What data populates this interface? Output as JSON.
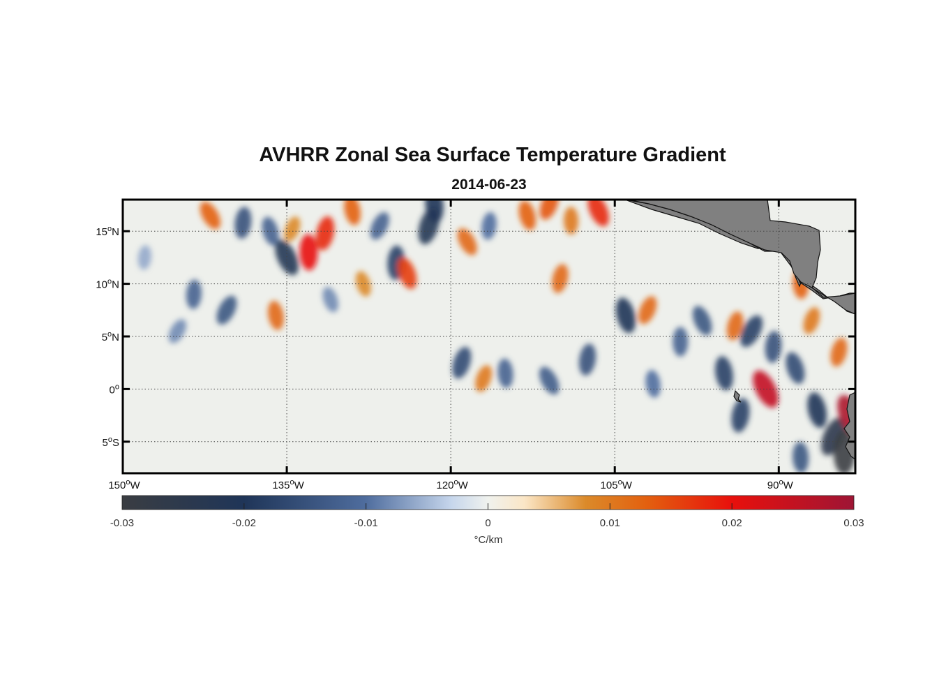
{
  "title": "AVHRR Zonal Sea Surface Temperature Gradient",
  "subtitle": "2014-06-23",
  "map": {
    "lon_range": [
      -150,
      -83
    ],
    "lat_range": [
      -8,
      18
    ],
    "lon_ticks": [
      {
        "value": -150,
        "num": "150",
        "deg": "o",
        "hemi": "W"
      },
      {
        "value": -135,
        "num": "135",
        "deg": "o",
        "hemi": "W"
      },
      {
        "value": -120,
        "num": "120",
        "deg": "o",
        "hemi": "W"
      },
      {
        "value": -105,
        "num": "105",
        "deg": "o",
        "hemi": "W"
      },
      {
        "value": -90,
        "num": "90",
        "deg": "o",
        "hemi": "W"
      }
    ],
    "lat_ticks": [
      {
        "value": 15,
        "num": "15",
        "deg": "o",
        "hemi": "N"
      },
      {
        "value": 10,
        "num": "10",
        "deg": "o",
        "hemi": "N"
      },
      {
        "value": 5,
        "num": "5",
        "deg": "o",
        "hemi": "N"
      },
      {
        "value": 0,
        "num": "0",
        "deg": "o",
        "hemi": ""
      },
      {
        "value": -5,
        "num": "5",
        "deg": "o",
        "hemi": "S"
      }
    ],
    "land_color": "#808080",
    "field_features": [
      {
        "lon": -142,
        "lat": 16.5,
        "v": 0.013
      },
      {
        "lon": -139,
        "lat": 15.8,
        "v": -0.015
      },
      {
        "lon": -136.5,
        "lat": 15.0,
        "v": -0.012
      },
      {
        "lon": -134.5,
        "lat": 15.2,
        "v": 0.008
      },
      {
        "lon": -133,
        "lat": 13.0,
        "v": 0.02
      },
      {
        "lon": -135,
        "lat": 12.5,
        "v": -0.022
      },
      {
        "lon": -131.5,
        "lat": 14.8,
        "v": 0.018
      },
      {
        "lon": -129,
        "lat": 17.0,
        "v": 0.013
      },
      {
        "lon": -126.5,
        "lat": 15.5,
        "v": -0.012
      },
      {
        "lon": -125,
        "lat": 12.0,
        "v": -0.018
      },
      {
        "lon": -124,
        "lat": 11.0,
        "v": 0.016
      },
      {
        "lon": -122,
        "lat": 15.5,
        "v": -0.022
      },
      {
        "lon": -121.5,
        "lat": 17.5,
        "v": -0.02
      },
      {
        "lon": -118.5,
        "lat": 14.0,
        "v": 0.012
      },
      {
        "lon": -116.5,
        "lat": 15.5,
        "v": -0.01
      },
      {
        "lon": -113,
        "lat": 16.5,
        "v": 0.013
      },
      {
        "lon": -111,
        "lat": 17.5,
        "v": 0.014
      },
      {
        "lon": -109,
        "lat": 16.0,
        "v": 0.01
      },
      {
        "lon": -106.5,
        "lat": 17.0,
        "v": 0.018
      },
      {
        "lon": -110,
        "lat": 10.5,
        "v": 0.012
      },
      {
        "lon": -136,
        "lat": 7.0,
        "v": 0.012
      },
      {
        "lon": -140.5,
        "lat": 7.5,
        "v": -0.014
      },
      {
        "lon": -143.5,
        "lat": 9.0,
        "v": -0.012
      },
      {
        "lon": -131,
        "lat": 8.5,
        "v": -0.008
      },
      {
        "lon": -119,
        "lat": 2.5,
        "v": -0.016
      },
      {
        "lon": -115,
        "lat": 1.5,
        "v": -0.012
      },
      {
        "lon": -111,
        "lat": 0.8,
        "v": -0.013
      },
      {
        "lon": -107.5,
        "lat": 2.8,
        "v": -0.015
      },
      {
        "lon": -104,
        "lat": 7.0,
        "v": -0.02
      },
      {
        "lon": -102,
        "lat": 7.5,
        "v": 0.012
      },
      {
        "lon": -99,
        "lat": 4.5,
        "v": -0.012
      },
      {
        "lon": -97,
        "lat": 6.5,
        "v": -0.014
      },
      {
        "lon": -94,
        "lat": 6.0,
        "v": 0.012
      },
      {
        "lon": -95,
        "lat": 1.5,
        "v": -0.018
      },
      {
        "lon": -92.5,
        "lat": 5.5,
        "v": -0.018
      },
      {
        "lon": -90.5,
        "lat": 4.0,
        "v": -0.015
      },
      {
        "lon": -88.5,
        "lat": 2.0,
        "v": -0.016
      },
      {
        "lon": -87,
        "lat": 6.5,
        "v": 0.01
      },
      {
        "lon": -88,
        "lat": 10.0,
        "v": 0.013
      },
      {
        "lon": -91.2,
        "lat": 0.0,
        "v": 0.025
      },
      {
        "lon": -93.5,
        "lat": -2.5,
        "v": -0.018
      },
      {
        "lon": -86.5,
        "lat": -2.0,
        "v": -0.02
      },
      {
        "lon": -85,
        "lat": -4.5,
        "v": -0.025
      },
      {
        "lon": -84,
        "lat": -6.0,
        "v": -0.03
      },
      {
        "lon": -83.5,
        "lat": -2.5,
        "v": 0.028
      },
      {
        "lon": -84.5,
        "lat": 3.5,
        "v": 0.012
      },
      {
        "lon": -101.5,
        "lat": 0.5,
        "v": -0.01
      },
      {
        "lon": -145,
        "lat": 5.5,
        "v": -0.008
      },
      {
        "lon": -148,
        "lat": 12.5,
        "v": -0.006
      },
      {
        "lon": -128,
        "lat": 10.0,
        "v": 0.008
      },
      {
        "lon": -117,
        "lat": 1.0,
        "v": 0.01
      },
      {
        "lon": -88,
        "lat": -6.5,
        "v": -0.014
      }
    ]
  },
  "colorbar": {
    "min": -0.03,
    "max": 0.03,
    "tick_values": [
      -0.03,
      -0.02,
      -0.01,
      0,
      0.01,
      0.02,
      0.03
    ],
    "tick_labels": [
      "-0.03",
      "-0.02",
      "-0.01",
      "0",
      "0.01",
      "0.02",
      "0.03"
    ],
    "unit_label": "°C/km",
    "stops": [
      {
        "v": -0.03,
        "color": "#3a3d42"
      },
      {
        "v": -0.02,
        "color": "#1f3558"
      },
      {
        "v": -0.01,
        "color": "#4f6d9e"
      },
      {
        "v": -0.003,
        "color": "#c6d6ec"
      },
      {
        "v": 0.0,
        "color": "#f0f2ee"
      },
      {
        "v": 0.003,
        "color": "#fbe6c6"
      },
      {
        "v": 0.008,
        "color": "#db8a2a"
      },
      {
        "v": 0.013,
        "color": "#e3600f"
      },
      {
        "v": 0.02,
        "color": "#e8100c"
      },
      {
        "v": 0.03,
        "color": "#9e1535"
      }
    ]
  }
}
